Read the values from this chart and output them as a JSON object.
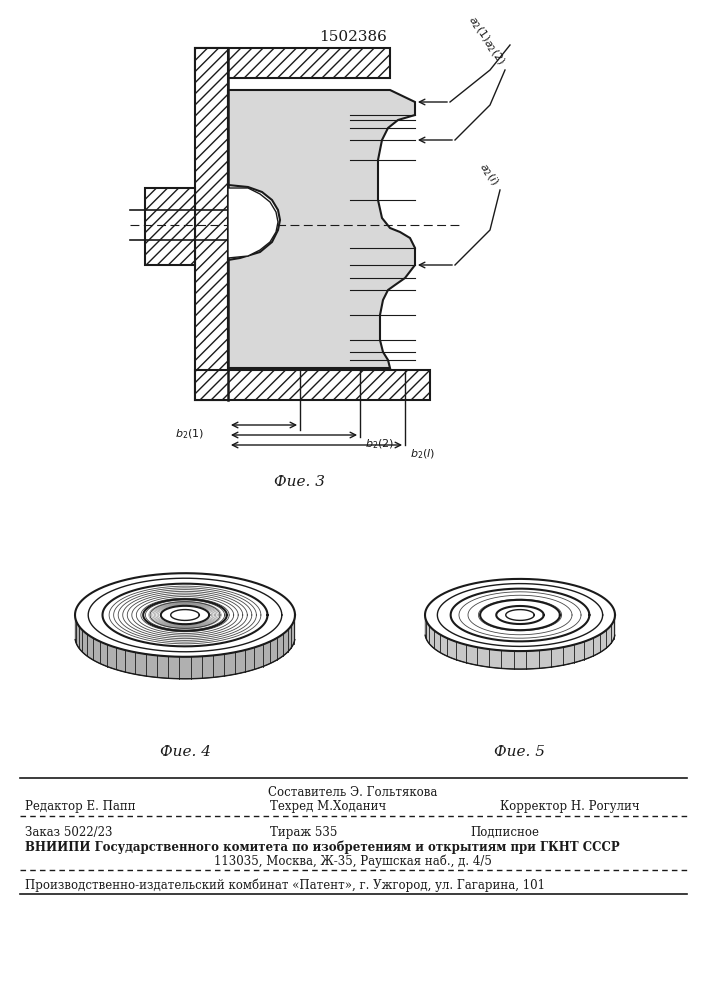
{
  "patent_number": "1502386",
  "fig3_label": "Фие. 3",
  "fig4_label": "Фие. 4",
  "fig5_label": "Фие. 5",
  "footer_line1": "Составитель Э. Гольтякова",
  "footer_editor": "Редактор Е. Папп",
  "footer_techred": "Техред М.Ходанич",
  "footer_corrector": "Корректор Н. Рогулич",
  "footer_order": "Заказ 5022/23",
  "footer_tirazh": "Тираж 535",
  "footer_podpis": "Подписное",
  "footer_vniiipi": "ВНИИПИ Государственного комитета по изобретениям и открытиям при ГКНТ СССР",
  "footer_address": "113035, Москва, Ж-35, Раушская наб., д. 4/5",
  "footer_proizv": "Производственно-издательский комбинат «Патент», г. Ужгород, ул. Гагарина, 101",
  "line_color": "#1a1a1a"
}
